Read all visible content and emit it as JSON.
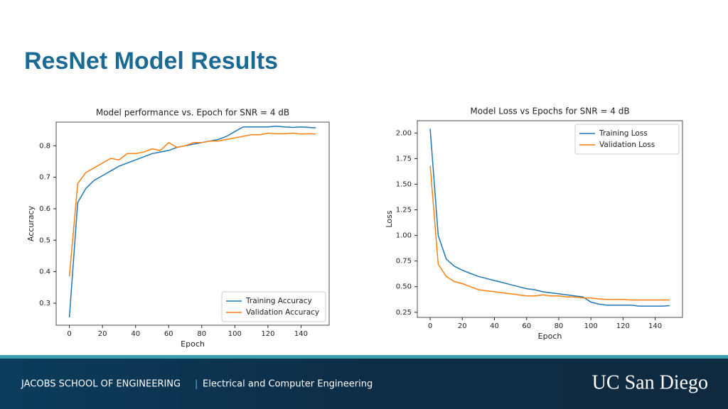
{
  "title": "ResNet Model Results",
  "chart_data": [
    {
      "type": "line",
      "title": "Model performance vs. Epoch for SNR = 4 dB",
      "x_label": "Epoch",
      "y_label": "Accuracy",
      "x": [
        0,
        5,
        10,
        15,
        20,
        25,
        30,
        35,
        40,
        45,
        50,
        55,
        60,
        65,
        70,
        75,
        80,
        85,
        90,
        95,
        100,
        105,
        110,
        115,
        120,
        125,
        130,
        135,
        140,
        145,
        149
      ],
      "series": [
        {
          "name": "Training Accuracy",
          "color": "#1f77b4",
          "values": [
            0.255,
            0.62,
            0.665,
            0.69,
            0.705,
            0.72,
            0.735,
            0.745,
            0.755,
            0.765,
            0.775,
            0.78,
            0.785,
            0.795,
            0.8,
            0.805,
            0.81,
            0.815,
            0.82,
            0.83,
            0.845,
            0.86,
            0.86,
            0.86,
            0.86,
            0.862,
            0.86,
            0.858,
            0.86,
            0.858,
            0.857
          ]
        },
        {
          "name": "Validation Accuracy",
          "color": "#ff7f0e",
          "values": [
            0.385,
            0.68,
            0.715,
            0.73,
            0.745,
            0.76,
            0.755,
            0.775,
            0.775,
            0.78,
            0.79,
            0.785,
            0.81,
            0.795,
            0.8,
            0.81,
            0.81,
            0.815,
            0.815,
            0.82,
            0.825,
            0.83,
            0.835,
            0.835,
            0.84,
            0.838,
            0.838,
            0.84,
            0.837,
            0.838,
            0.837
          ]
        }
      ],
      "xlim": [
        -8,
        157
      ],
      "ylim": [
        0.23,
        0.875
      ],
      "xticks": [
        0,
        20,
        40,
        60,
        80,
        100,
        120,
        140
      ],
      "yticks": [
        0.3,
        0.4,
        0.5,
        0.6,
        0.7,
        0.8
      ],
      "legend": "lower right"
    },
    {
      "type": "line",
      "title": "Model Loss vs Epochs for SNR = 4 dB",
      "x_label": "Epoch",
      "y_label": "Loss",
      "x": [
        0,
        5,
        10,
        15,
        20,
        25,
        30,
        35,
        40,
        45,
        50,
        55,
        60,
        65,
        70,
        75,
        80,
        85,
        90,
        95,
        100,
        105,
        110,
        115,
        120,
        125,
        130,
        135,
        140,
        145,
        149
      ],
      "series": [
        {
          "name": "Training Loss",
          "color": "#1f77b4",
          "values": [
            2.04,
            1.0,
            0.77,
            0.7,
            0.66,
            0.63,
            0.6,
            0.58,
            0.56,
            0.54,
            0.52,
            0.5,
            0.48,
            0.47,
            0.45,
            0.44,
            0.43,
            0.42,
            0.41,
            0.4,
            0.35,
            0.33,
            0.32,
            0.32,
            0.32,
            0.32,
            0.31,
            0.31,
            0.31,
            0.31,
            0.315
          ]
        },
        {
          "name": "Validation Loss",
          "color": "#ff7f0e",
          "values": [
            1.68,
            0.72,
            0.6,
            0.55,
            0.53,
            0.5,
            0.47,
            0.46,
            0.45,
            0.44,
            0.43,
            0.42,
            0.41,
            0.41,
            0.42,
            0.41,
            0.41,
            0.4,
            0.4,
            0.39,
            0.39,
            0.38,
            0.375,
            0.375,
            0.375,
            0.37,
            0.37,
            0.37,
            0.37,
            0.37,
            0.37
          ]
        }
      ],
      "xlim": [
        -8,
        157
      ],
      "ylim": [
        0.2,
        2.12
      ],
      "xticks": [
        0,
        20,
        40,
        60,
        80,
        100,
        120,
        140
      ],
      "yticks": [
        0.25,
        {
          "value": 0.5,
          "label": "0.50"
        },
        0.75,
        {
          "value": 1,
          "label": "1.00"
        },
        1.25,
        {
          "value": 1.5,
          "label": "1.50"
        },
        1.75,
        {
          "value": 2,
          "label": "2.00"
        }
      ],
      "legend": "upper right"
    }
  ],
  "footer": {
    "school": "JACOBS SCHOOL OF ENGINEERING",
    "separator": "|",
    "department": "Electrical and Computer Engineering",
    "logo": "UC San Diego"
  }
}
